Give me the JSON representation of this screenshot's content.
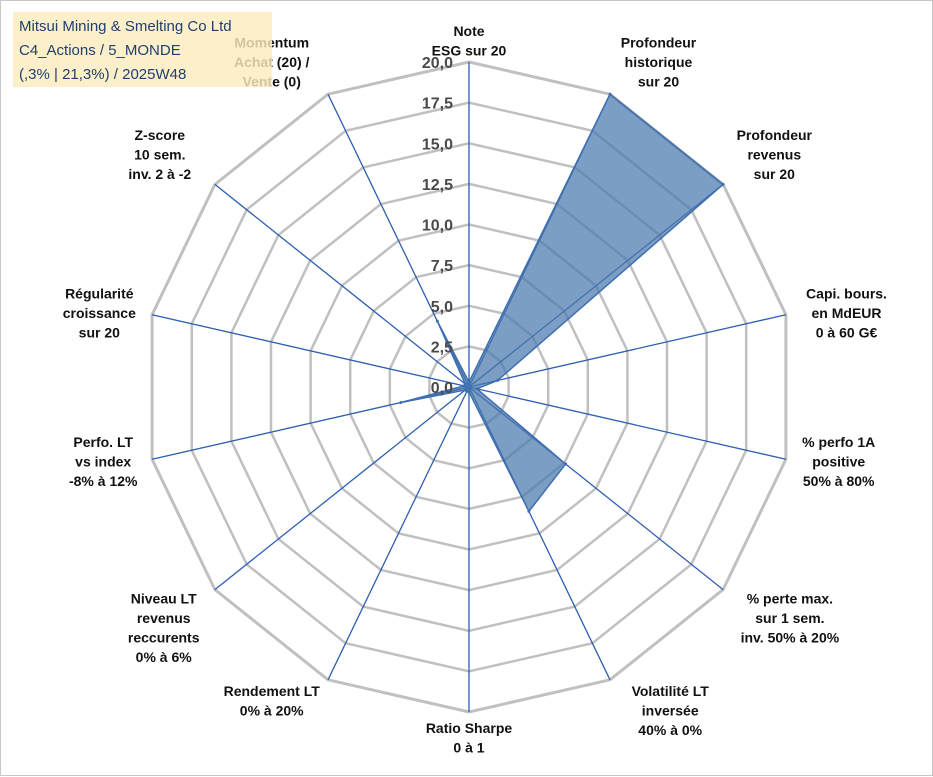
{
  "title_box": {
    "line1": "Mitsui Mining & Smelting Co Ltd",
    "line2": "C4_Actions / 5_MONDE",
    "line3": "(,3% | 21,3%) / 2025W48"
  },
  "colors": {
    "series_fill": "#4a78ad",
    "series_stroke": "#3f6fb0",
    "grid": "#c0c0c0",
    "spoke": "#2e5fb0",
    "title_bg": "#fdecbe"
  },
  "chart_data": {
    "type": "radar",
    "title": "",
    "rlim": [
      0,
      20
    ],
    "ticks": [
      "0,0",
      "2,5",
      "5,0",
      "7,5",
      "10,0",
      "12,5",
      "15,0",
      "17,5",
      "20,0"
    ],
    "grid": true,
    "axes": [
      {
        "label": [
          "Note",
          "ESG sur 20"
        ],
        "value": 0.3
      },
      {
        "label": [
          "Profondeur",
          "historique",
          "sur 20"
        ],
        "value": 20.0
      },
      {
        "label": [
          "Profondeur",
          "revenus",
          "sur 20"
        ],
        "value": 20.0
      },
      {
        "label": [
          "Capi. bours.",
          "en MdEUR",
          "0 à 60 G€"
        ],
        "value": 1.8
      },
      {
        "label": [
          "% perfo 1A",
          "positive",
          "50% à 80%"
        ],
        "value": 0.5
      },
      {
        "label": [
          "% perte max.",
          "sur 1 sem.",
          "inv. 50% à 20%"
        ],
        "value": 7.6
      },
      {
        "label": [
          "Volatilité LT",
          "inversée",
          "40% à 0%"
        ],
        "value": 8.5
      },
      {
        "label": [
          "Ratio Sharpe",
          "0 à 1"
        ],
        "value": 0.3
      },
      {
        "label": [
          "Rendement LT",
          "0% à 20%"
        ],
        "value": 0.3
      },
      {
        "label": [
          "Niveau LT",
          "revenus",
          "reccurents",
          "0% à 6%"
        ],
        "value": 0.3
      },
      {
        "label": [
          "Perfo. LT",
          "vs index",
          "-8% à 12%"
        ],
        "value": 4.3
      },
      {
        "label": [
          "Régularité",
          "croissance",
          "sur 20"
        ],
        "value": 0.3
      },
      {
        "label": [
          "Z-score",
          "10 sem.",
          "inv. 2 à -2"
        ],
        "value": 0.3
      },
      {
        "label": [
          "Momentum",
          "Achat (20) /",
          "Vente (0)"
        ],
        "value": 4.5
      }
    ]
  }
}
